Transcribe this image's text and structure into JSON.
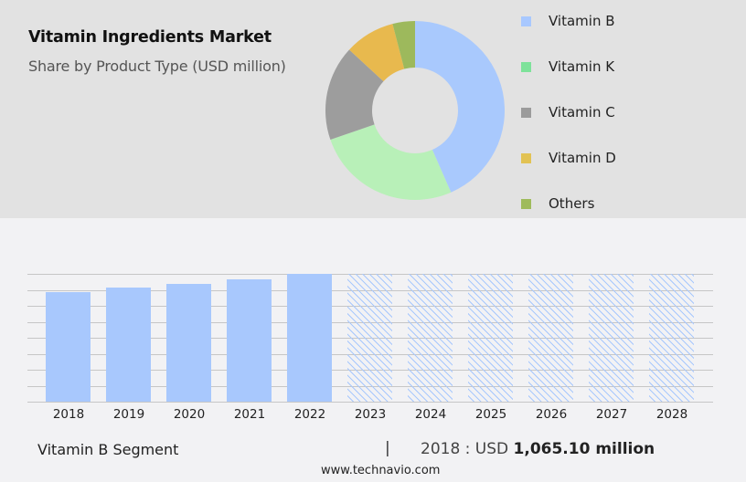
{
  "header": {
    "title": "Vitamin Ingredients Market",
    "subtitle": "Share by Product Type (USD million)"
  },
  "legend": [
    {
      "label": "Vitamin B",
      "color": "#a8c8ff"
    },
    {
      "label": "Vitamin K",
      "color": "#7ee29a"
    },
    {
      "label": "Vitamin C",
      "color": "#9b9b9b"
    },
    {
      "label": "Vitamin D",
      "color": "#e2c253"
    },
    {
      "label": "Others",
      "color": "#9fbb5b"
    }
  ],
  "footer": {
    "segment": "Vitamin B Segment",
    "divider": "|",
    "year_prefix": "2018 : USD ",
    "value": "1,065.10 million",
    "url": "www.technavio.com"
  },
  "chart_data": [
    {
      "type": "pie",
      "title": "Vitamin Ingredients Market",
      "subtitle": "Share by Product Type (USD million)",
      "donut": true,
      "categories": [
        "Vitamin B",
        "Vitamin K",
        "Vitamin C",
        "Vitamin D",
        "Others"
      ],
      "values": [
        43,
        26,
        17,
        9,
        4
      ],
      "colors": [
        "#a9c9fd",
        "#b8f0b8",
        "#9d9d9d",
        "#e8b94e",
        "#9db95c"
      ],
      "legend_position": "right"
    },
    {
      "type": "bar",
      "title": "Vitamin B Segment",
      "categories": [
        "2018",
        "2019",
        "2020",
        "2021",
        "2022",
        "2023",
        "2024",
        "2025",
        "2026",
        "2027",
        "2028"
      ],
      "values": [
        1065.1,
        1095,
        1130,
        1170,
        1215,
        null,
        null,
        null,
        null,
        null,
        null
      ],
      "forecast": [
        false,
        false,
        false,
        false,
        false,
        true,
        true,
        true,
        true,
        true,
        true
      ],
      "relative_heights": [
        0.86,
        0.89,
        0.92,
        0.96,
        1.0,
        1.0,
        1.0,
        1.0,
        1.0,
        1.0,
        1.0
      ],
      "xlabel": "",
      "ylabel": "",
      "grid": true,
      "annotation": "2018 : USD 1,065.10 million",
      "color": "#a8c8fd"
    }
  ]
}
